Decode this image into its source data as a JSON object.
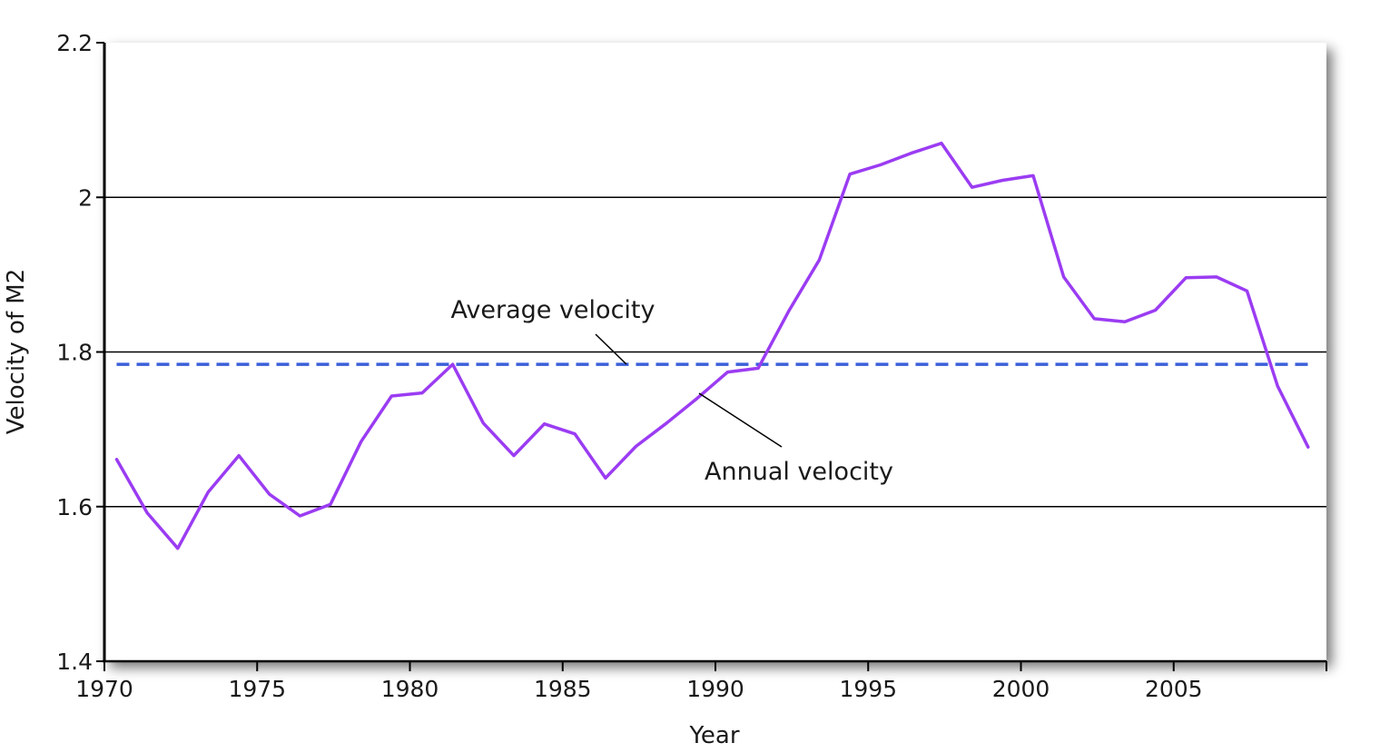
{
  "chart_data": {
    "type": "line",
    "xlabel": "Year",
    "ylabel": "Velocity of M2",
    "xlim": [
      1970,
      2010
    ],
    "ylim": [
      1.4,
      2.2
    ],
    "x_ticks": [
      1970,
      1975,
      1980,
      1985,
      1990,
      1995,
      2000,
      2005
    ],
    "x_tick_labels": [
      "1970",
      "1975",
      "1980",
      "1985",
      "1990",
      "1995",
      "2000",
      "2005"
    ],
    "y_ticks": [
      1.4,
      1.6,
      1.8,
      2,
      2.2
    ],
    "y_tick_labels": [
      "1.4",
      "1.6",
      "1.8",
      "2",
      "2.2"
    ],
    "gridlines_y": [
      1.6,
      1.8,
      2.0
    ],
    "series": [
      {
        "name": "Annual velocity",
        "style": "solid",
        "color": "#9b3cf2",
        "x": [
          1970.4,
          1971.4,
          1972.4,
          1973.4,
          1974.4,
          1975.4,
          1976.4,
          1977.4,
          1978.4,
          1979.4,
          1980.4,
          1981.4,
          1982.4,
          1983.4,
          1984.4,
          1985.4,
          1986.4,
          1987.4,
          1988.4,
          1989.4,
          1990.4,
          1991.4,
          1992.4,
          1993.4,
          1994.4,
          1995.4,
          1996.4,
          1997.4,
          1998.4,
          1999.4,
          2000.4,
          2001.4,
          2002.4,
          2003.4,
          2004.4,
          2005.4,
          2006.4,
          2007.4,
          2008.4,
          2009.4
        ],
        "values": [
          1.661,
          1.592,
          1.546,
          1.619,
          1.666,
          1.616,
          1.588,
          1.603,
          1.684,
          1.743,
          1.747,
          1.784,
          1.708,
          1.666,
          1.707,
          1.694,
          1.637,
          1.678,
          1.708,
          1.74,
          1.774,
          1.779,
          1.853,
          1.919,
          2.03,
          2.042,
          2.057,
          2.07,
          2.013,
          2.022,
          2.028,
          1.897,
          1.843,
          1.839,
          1.854,
          1.896,
          1.897,
          1.879,
          1.756,
          1.677
        ]
      },
      {
        "name": "Average velocity",
        "style": "dashed",
        "color": "#3b5fd9",
        "x": [
          1970.4,
          2009.4
        ],
        "values": [
          1.784,
          1.784
        ]
      }
    ],
    "annotations": [
      {
        "text": "Average velocity",
        "points_to": "Average velocity"
      },
      {
        "text": "Annual velocity",
        "points_to": "Annual velocity"
      }
    ]
  }
}
